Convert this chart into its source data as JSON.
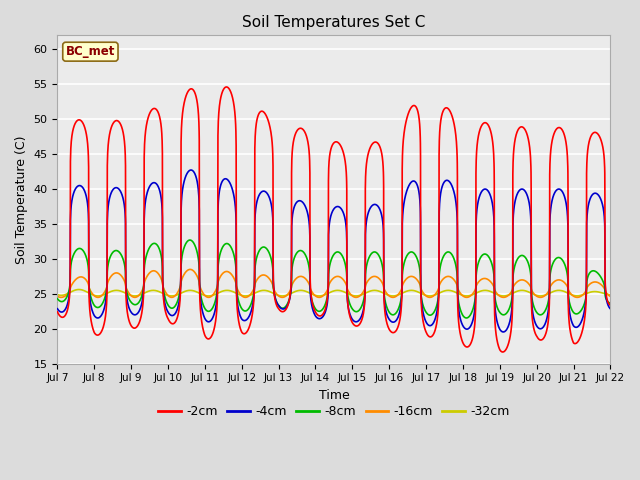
{
  "title": "Soil Temperatures Set C",
  "xlabel": "Time",
  "ylabel": "Soil Temperature (C)",
  "ylim": [
    15,
    62
  ],
  "x_tick_labels": [
    "Jul 7",
    "Jul 8",
    "Jul 9",
    "Jul 10",
    "Jul 11",
    "Jul 12",
    "Jul 13",
    "Jul 14",
    "Jul 15",
    "Jul 16",
    "Jul 17",
    "Jul 18",
    "Jul 19",
    "Jul 20",
    "Jul 21",
    "Jul 22"
  ],
  "annotation_text": "BC_met",
  "annotation_bg": "#FFFFCC",
  "annotation_border": "#8B6914",
  "annotation_text_color": "#8B0000",
  "fig_bg": "#DCDCDC",
  "plot_bg": "#EBEBEB",
  "lines": {
    "-2cm": {
      "color": "#FF0000",
      "lw": 1.2
    },
    "-4cm": {
      "color": "#0000CC",
      "lw": 1.2
    },
    "-8cm": {
      "color": "#00BB00",
      "lw": 1.2
    },
    "-16cm": {
      "color": "#FF8C00",
      "lw": 1.2
    },
    "-32cm": {
      "color": "#CCCC00",
      "lw": 1.2
    }
  },
  "legend_colors": [
    "#FF0000",
    "#0000CC",
    "#00BB00",
    "#FF8C00",
    "#CCCC00"
  ],
  "legend_labels": [
    "-2cm",
    "-4cm",
    "-8cm",
    "-16cm",
    "-32cm"
  ],
  "grid_color": "#FFFFFF",
  "yticks": [
    15,
    20,
    25,
    30,
    35,
    40,
    45,
    50,
    55,
    60
  ],
  "peak_2cm": [
    50.5,
    49.5,
    50.0,
    52.5,
    55.5,
    54.0,
    49.0,
    48.5,
    45.5,
    47.5,
    54.5,
    49.5,
    49.5,
    48.5,
    49.0,
    47.5
  ],
  "min_2cm": [
    22.0,
    19.0,
    20.0,
    21.0,
    18.5,
    19.0,
    22.5,
    22.0,
    20.5,
    19.5,
    19.0,
    17.5,
    16.5,
    18.5,
    17.5,
    23.0
  ],
  "peak_4cm": [
    40.5,
    40.5,
    40.0,
    41.5,
    43.5,
    40.0,
    39.5,
    37.5,
    37.5,
    38.0,
    43.0,
    40.0,
    40.0,
    40.0,
    40.0,
    39.0
  ],
  "min_4cm": [
    22.5,
    21.5,
    22.0,
    22.0,
    21.0,
    21.0,
    23.0,
    21.5,
    21.0,
    21.0,
    20.5,
    20.0,
    19.5,
    20.0,
    20.0,
    22.5
  ],
  "peak_8cm": [
    31.5,
    31.5,
    31.0,
    33.0,
    32.5,
    32.0,
    31.5,
    31.0,
    31.0,
    31.0,
    31.0,
    31.0,
    30.5,
    30.5,
    30.0,
    27.0
  ],
  "min_8cm": [
    24.0,
    23.0,
    23.5,
    23.0,
    22.5,
    22.5,
    23.0,
    22.5,
    22.5,
    22.0,
    22.0,
    21.5,
    22.0,
    22.0,
    22.0,
    23.5
  ],
  "peak_16cm": [
    26.5,
    28.0,
    28.0,
    28.5,
    28.5,
    28.0,
    27.5,
    27.5,
    27.5,
    27.5,
    27.5,
    27.5,
    27.0,
    27.0,
    27.0,
    26.5
  ],
  "min_16cm": [
    24.5,
    24.5,
    24.5,
    24.5,
    24.5,
    24.5,
    24.5,
    24.5,
    24.5,
    24.5,
    24.5,
    24.5,
    24.5,
    24.5,
    24.5,
    24.5
  ],
  "peak_32cm": [
    25.8,
    25.5,
    25.5,
    25.5,
    25.5,
    25.5,
    25.5,
    25.5,
    25.5,
    25.5,
    25.5,
    25.5,
    25.5,
    25.5,
    25.5,
    25.2
  ],
  "min_32cm": [
    24.8,
    24.7,
    24.7,
    24.7,
    24.7,
    24.7,
    24.7,
    24.7,
    24.7,
    24.7,
    24.7,
    24.7,
    24.7,
    24.7,
    24.7,
    24.8
  ]
}
